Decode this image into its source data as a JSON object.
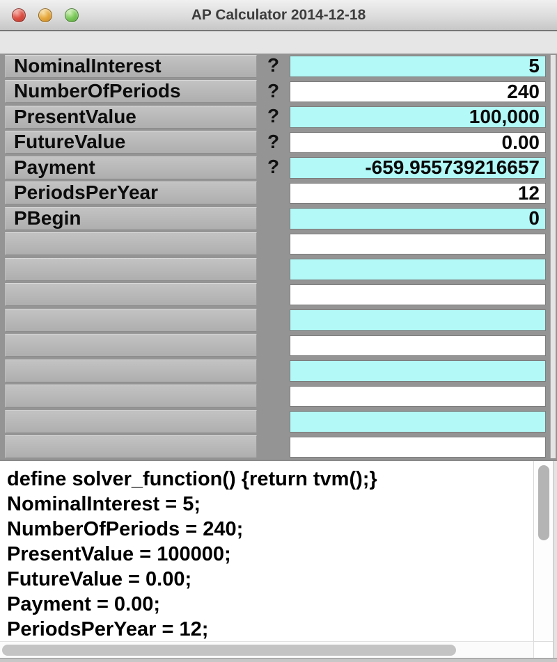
{
  "window": {
    "title": "AP Calculator 2014-12-18"
  },
  "colors": {
    "highlight_cell": "#b2f9f7",
    "plain_cell": "#ffffff",
    "label_cell": "#b5b5b5",
    "table_background": "#949494",
    "close_button": "#de5044",
    "minimize_button": "#e7aa40",
    "zoom_button": "#7fcb5e"
  },
  "variables_table": {
    "rows": [
      {
        "label": "NominalInterest",
        "solve_marker": "?",
        "value": "5",
        "highlighted": true
      },
      {
        "label": "NumberOfPeriods",
        "solve_marker": "?",
        "value": "240",
        "highlighted": false
      },
      {
        "label": "PresentValue",
        "solve_marker": "?",
        "value": "100,000",
        "highlighted": true
      },
      {
        "label": "FutureValue",
        "solve_marker": "?",
        "value": "0.00",
        "highlighted": false
      },
      {
        "label": "Payment",
        "solve_marker": "?",
        "value": "-659.955739216657",
        "highlighted": true
      },
      {
        "label": "PeriodsPerYear",
        "solve_marker": "",
        "value": "12",
        "highlighted": false
      },
      {
        "label": "PBegin",
        "solve_marker": "",
        "value": "0",
        "highlighted": true
      },
      {
        "label": "",
        "solve_marker": "",
        "value": "",
        "highlighted": false
      },
      {
        "label": "",
        "solve_marker": "",
        "value": "",
        "highlighted": true
      },
      {
        "label": "",
        "solve_marker": "",
        "value": "",
        "highlighted": false
      },
      {
        "label": "",
        "solve_marker": "",
        "value": "",
        "highlighted": true
      },
      {
        "label": "",
        "solve_marker": "",
        "value": "",
        "highlighted": false
      },
      {
        "label": "",
        "solve_marker": "",
        "value": "",
        "highlighted": true
      },
      {
        "label": "",
        "solve_marker": "",
        "value": "",
        "highlighted": false
      },
      {
        "label": "",
        "solve_marker": "",
        "value": "",
        "highlighted": true
      },
      {
        "label": "",
        "solve_marker": "",
        "value": "",
        "highlighted": false
      }
    ]
  },
  "script_editor": {
    "lines": [
      "define solver_function() {return tvm();}",
      "NominalInterest = 5;",
      "NumberOfPeriods = 240;",
      "PresentValue = 100000;",
      "FutureValue = 0.00;",
      "Payment = 0.00;",
      "PeriodsPerYear = 12;"
    ]
  }
}
